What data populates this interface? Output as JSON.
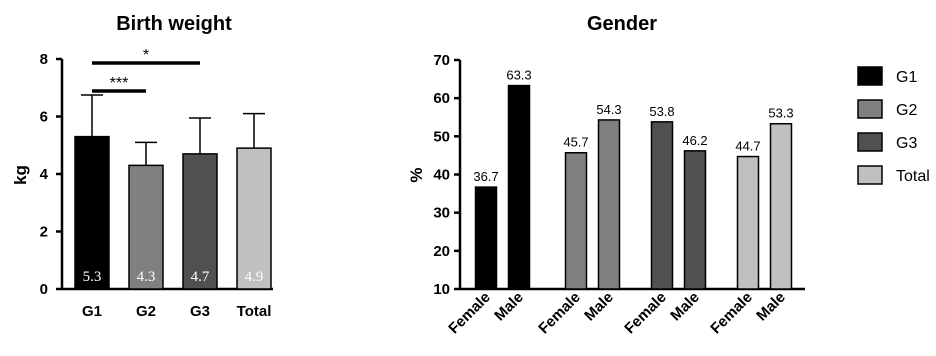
{
  "chart_data": [
    {
      "type": "bar",
      "title": "Birth weight",
      "ylabel": "kg",
      "ylim": [
        0,
        8
      ],
      "yticks": [
        0,
        2,
        4,
        6,
        8
      ],
      "categories": [
        "G1",
        "G2",
        "G3",
        "Total"
      ],
      "values": [
        5.3,
        4.3,
        4.7,
        4.9
      ],
      "value_labels": [
        "5.3",
        "4.3",
        "4.7",
        "4.9"
      ],
      "error_upper": [
        6.75,
        5.1,
        5.95,
        6.1
      ],
      "colors": [
        "#000000",
        "#808080",
        "#505050",
        "#c0c0c0"
      ],
      "significance": [
        {
          "from": "G1",
          "to": "G2",
          "label": "***"
        },
        {
          "from": "G1",
          "to": "G3",
          "label": "*"
        }
      ]
    },
    {
      "type": "bar",
      "title": "Gender",
      "ylabel": "%",
      "ylim": [
        10,
        70
      ],
      "yticks": [
        10,
        20,
        30,
        40,
        50,
        60,
        70
      ],
      "groups": [
        {
          "series": "G1",
          "color": "#000000",
          "bars": [
            {
              "category": "Female",
              "value": 36.7,
              "label": "36.7"
            },
            {
              "category": "Male",
              "value": 63.3,
              "label": "63.3"
            }
          ]
        },
        {
          "series": "G2",
          "color": "#808080",
          "bars": [
            {
              "category": "Female",
              "value": 45.7,
              "label": "45.7"
            },
            {
              "category": "Male",
              "value": 54.3,
              "label": "54.3"
            }
          ]
        },
        {
          "series": "G3",
          "color": "#505050",
          "bars": [
            {
              "category": "Female",
              "value": 53.8,
              "label": "53.8"
            },
            {
              "category": "Male",
              "value": 46.2,
              "label": "46.2"
            }
          ]
        },
        {
          "series": "Total",
          "color": "#c0c0c0",
          "bars": [
            {
              "category": "Female",
              "value": 44.7,
              "label": "44.7"
            },
            {
              "category": "Male",
              "value": 53.3,
              "label": "53.3"
            }
          ]
        }
      ],
      "legend": {
        "placement": "right",
        "entries": [
          {
            "name": "G1",
            "color": "#000000"
          },
          {
            "name": "G2",
            "color": "#808080"
          },
          {
            "name": "G3",
            "color": "#505050"
          },
          {
            "name": "Total",
            "color": "#c0c0c0"
          }
        ]
      }
    }
  ]
}
